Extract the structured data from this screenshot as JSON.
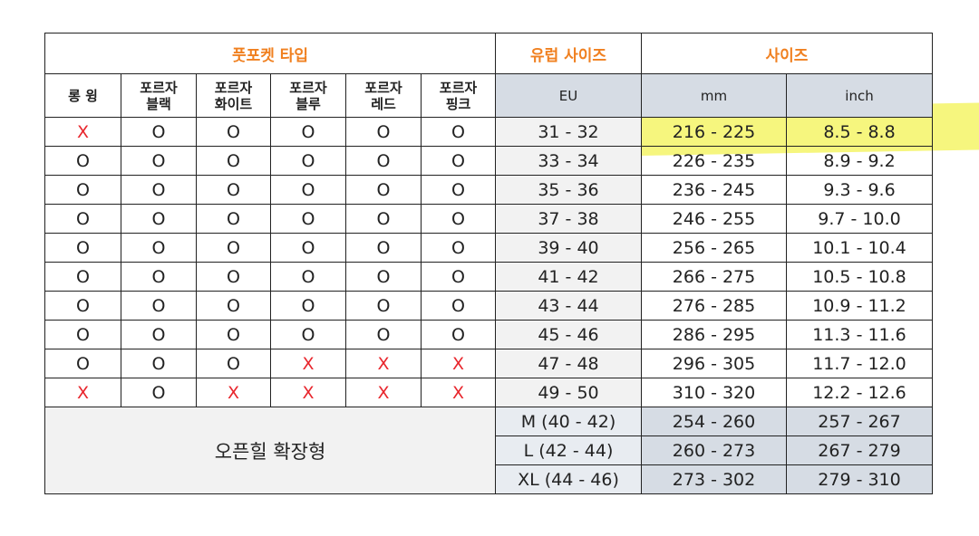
{
  "header": {
    "groups": [
      "풋포켓 타입",
      "유럽 사이즈",
      "사이즈"
    ],
    "columns": [
      "롱 윙",
      "포르자\n블랙",
      "포르자\n화이트",
      "포르자\n블루",
      "포르자\n레드",
      "포르자\n핑크",
      "EU",
      "mm",
      "inch"
    ]
  },
  "mark_colors": {
    "X": "#e8262d",
    "O": "#222222"
  },
  "table": {
    "rows": [
      [
        "X",
        "O",
        "O",
        "O",
        "O",
        "O",
        "31 - 32",
        "216 - 225",
        "8.5 - 8.8"
      ],
      [
        "O",
        "O",
        "O",
        "O",
        "O",
        "O",
        "33 - 34",
        "226 - 235",
        "8.9 - 9.2"
      ],
      [
        "O",
        "O",
        "O",
        "O",
        "O",
        "O",
        "35 - 36",
        "236 - 245",
        "9.3 - 9.6"
      ],
      [
        "O",
        "O",
        "O",
        "O",
        "O",
        "O",
        "37 - 38",
        "246 - 255",
        "9.7 - 10.0"
      ],
      [
        "O",
        "O",
        "O",
        "O",
        "O",
        "O",
        "39 - 40",
        "256 - 265",
        "10.1 - 10.4"
      ],
      [
        "O",
        "O",
        "O",
        "O",
        "O",
        "O",
        "41 - 42",
        "266 - 275",
        "10.5 - 10.8"
      ],
      [
        "O",
        "O",
        "O",
        "O",
        "O",
        "O",
        "43 - 44",
        "276 - 285",
        "10.9 - 11.2"
      ],
      [
        "O",
        "O",
        "O",
        "O",
        "O",
        "O",
        "45 - 46",
        "286 - 295",
        "11.3 - 11.6"
      ],
      [
        "O",
        "O",
        "O",
        "X",
        "X",
        "X",
        "47 - 48",
        "296 - 305",
        "11.7 - 12.0"
      ],
      [
        "X",
        "O",
        "X",
        "X",
        "X",
        "X",
        "49 - 50",
        "310 - 320",
        "12.2 - 12.6"
      ]
    ]
  },
  "footer": {
    "label": "오픈힐 확장형",
    "rows": [
      [
        "M (40 - 42)",
        "254 - 260",
        "257 - 267"
      ],
      [
        "L (42 - 44)",
        "260 - 273",
        "267 - 279"
      ],
      [
        "XL (44 - 46)",
        "273 - 302",
        "279 - 310"
      ]
    ]
  }
}
